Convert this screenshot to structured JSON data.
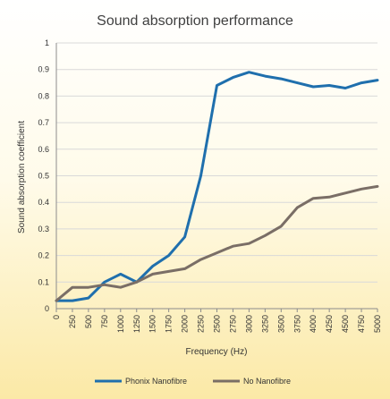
{
  "chart_data": {
    "type": "line",
    "title": "Sound absorption performance",
    "xlabel": "Frequency (Hz)",
    "ylabel": "Sound absorption coefficient",
    "categories": [
      "0",
      "250",
      "500",
      "750",
      "1000",
      "1250",
      "1500",
      "1750",
      "2000",
      "2250",
      "2500",
      "2750",
      "3000",
      "3250",
      "3500",
      "3750",
      "4000",
      "4250",
      "4500",
      "4750",
      "5000"
    ],
    "yticks": [
      "0",
      "0.1",
      "0.2",
      "0.3",
      "0.4",
      "0.5",
      "0.6",
      "0.7",
      "0.8",
      "0.9",
      "1"
    ],
    "ylim": [
      0,
      1
    ],
    "grid": true,
    "legend_position": "bottom",
    "series": [
      {
        "name": "Phonix Nanofibre",
        "color": "#1f6fad",
        "values": [
          0.03,
          0.03,
          0.04,
          0.1,
          0.13,
          0.1,
          0.16,
          0.2,
          0.27,
          0.5,
          0.84,
          0.87,
          0.89,
          0.875,
          0.865,
          0.85,
          0.835,
          0.84,
          0.83,
          0.85,
          0.86
        ]
      },
      {
        "name": "No Nanofibre",
        "color": "#7a6e66",
        "values": [
          0.03,
          0.08,
          0.08,
          0.09,
          0.08,
          0.1,
          0.13,
          0.14,
          0.15,
          0.185,
          0.21,
          0.235,
          0.245,
          0.275,
          0.31,
          0.38,
          0.415,
          0.42,
          0.435,
          0.45,
          0.46
        ]
      }
    ]
  }
}
